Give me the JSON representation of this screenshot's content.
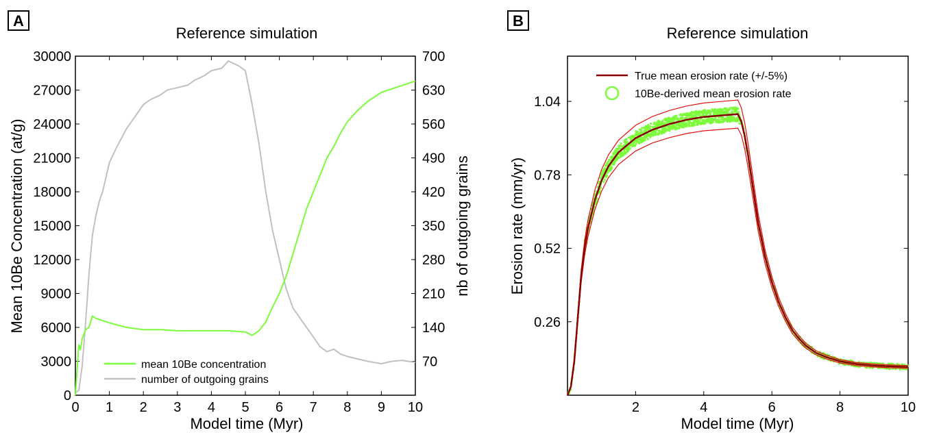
{
  "chart_data": [
    {
      "panel": "A",
      "type": "line",
      "title": "Reference simulation",
      "xlabel": "Model time (Myr)",
      "ylabel": "Mean 10Be Concentration (at/g)",
      "y2label": "nb of outgoing grains",
      "xlim": [
        0,
        10
      ],
      "ylim": [
        0,
        30000
      ],
      "y2lim": [
        0,
        700
      ],
      "xticks": [
        "0",
        "1",
        "2",
        "3",
        "4",
        "5",
        "6",
        "7",
        "8",
        "9",
        "10"
      ],
      "yticks": [
        "0",
        "3000",
        "6000",
        "9000",
        "12000",
        "15000",
        "18000",
        "21000",
        "24000",
        "27000",
        "30000"
      ],
      "y2ticks": [
        "70",
        "140",
        "210",
        "280",
        "350",
        "420",
        "490",
        "560",
        "630",
        "700"
      ],
      "legend_position": "bottom-left",
      "series": [
        {
          "name": "mean 10Be concentration",
          "axis": "left",
          "color": "#7cfc3a",
          "x": [
            0,
            0.1,
            0.15,
            0.2,
            0.3,
            0.4,
            0.5,
            0.6,
            0.8,
            1.0,
            1.5,
            2.0,
            2.5,
            3.0,
            3.5,
            4.0,
            4.5,
            5.0,
            5.2,
            5.4,
            5.6,
            5.8,
            6.0,
            6.2,
            6.4,
            6.6,
            6.8,
            7.0,
            7.2,
            7.4,
            7.6,
            7.8,
            8.0,
            8.3,
            8.6,
            9.0,
            9.5,
            10.0
          ],
          "y": [
            0,
            4500,
            4000,
            5000,
            5800,
            6000,
            7000,
            6800,
            6600,
            6400,
            6000,
            5800,
            5800,
            5700,
            5700,
            5700,
            5700,
            5600,
            5300,
            5700,
            6500,
            7800,
            9000,
            10500,
            12500,
            14500,
            16500,
            18000,
            19500,
            21000,
            22000,
            23200,
            24200,
            25200,
            26000,
            26800,
            27300,
            27800
          ]
        },
        {
          "name": "number of outgoing grains",
          "axis": "right",
          "color": "#c0c0c0",
          "x": [
            0,
            0.1,
            0.2,
            0.3,
            0.4,
            0.5,
            0.6,
            0.7,
            0.8,
            1.0,
            1.2,
            1.5,
            1.8,
            2.0,
            2.2,
            2.5,
            2.7,
            3.0,
            3.3,
            3.5,
            3.8,
            4.0,
            4.3,
            4.5,
            4.8,
            5.0,
            5.2,
            5.4,
            5.6,
            5.8,
            6.0,
            6.2,
            6.4,
            6.6,
            6.8,
            7.0,
            7.2,
            7.4,
            7.6,
            7.8,
            8.0,
            8.3,
            8.6,
            9.0,
            9.3,
            9.6,
            10.0
          ],
          "y": [
            5,
            10,
            60,
            150,
            250,
            330,
            370,
            400,
            420,
            480,
            510,
            550,
            580,
            600,
            610,
            620,
            630,
            635,
            640,
            650,
            660,
            670,
            675,
            690,
            680,
            670,
            600,
            520,
            420,
            340,
            280,
            220,
            180,
            160,
            140,
            120,
            100,
            90,
            95,
            85,
            80,
            75,
            70,
            65,
            70,
            72,
            68
          ]
        }
      ]
    },
    {
      "panel": "B",
      "type": "line",
      "title": "Reference simulation",
      "xlabel": "Model time (Myr)",
      "ylabel": "Erosion rate (mm/yr)",
      "xlim": [
        0,
        10
      ],
      "ylim": [
        0,
        1.2
      ],
      "xticks": [
        "2",
        "4",
        "6",
        "8",
        "10"
      ],
      "yticks": [
        "0.26",
        "0.52",
        "0.78",
        "1.04"
      ],
      "legend_position": "top-left",
      "series": [
        {
          "name": "True mean erosion rate (+/-5%)",
          "color": "#8b0000",
          "x": [
            0,
            0.1,
            0.2,
            0.3,
            0.4,
            0.5,
            0.6,
            0.8,
            1.0,
            1.2,
            1.5,
            2.0,
            2.5,
            3.0,
            3.5,
            4.0,
            4.5,
            5.0,
            5.1,
            5.2,
            5.3,
            5.4,
            5.5,
            5.6,
            5.8,
            6.0,
            6.2,
            6.4,
            6.6,
            6.8,
            7.0,
            7.3,
            7.6,
            8.0,
            8.5,
            9.0,
            9.5,
            10.0
          ],
          "y": [
            0,
            0.03,
            0.12,
            0.27,
            0.42,
            0.52,
            0.59,
            0.69,
            0.76,
            0.81,
            0.86,
            0.91,
            0.94,
            0.96,
            0.975,
            0.985,
            0.99,
            0.995,
            0.97,
            0.92,
            0.85,
            0.77,
            0.69,
            0.61,
            0.49,
            0.4,
            0.33,
            0.275,
            0.23,
            0.2,
            0.175,
            0.15,
            0.135,
            0.12,
            0.11,
            0.105,
            0.102,
            0.1
          ]
        },
        {
          "name": "10Be-derived mean erosion rate",
          "color": "#7cfc3a"
        }
      ]
    }
  ]
}
